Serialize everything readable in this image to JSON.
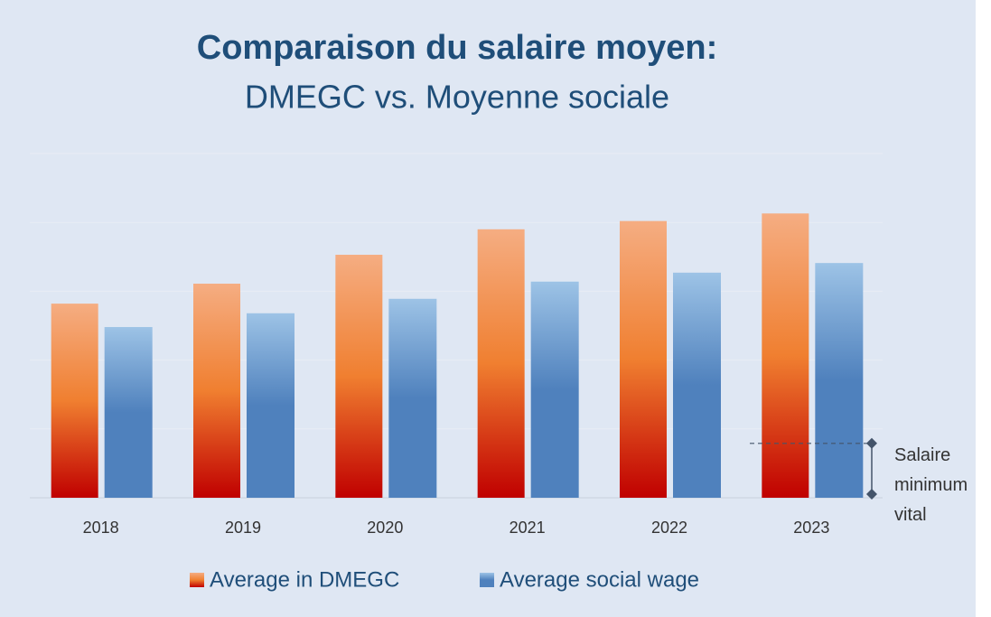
{
  "chart_data": {
    "type": "bar",
    "title": "Comparaison du salaire moyen:",
    "subtitle": "DMEGC vs. Moyenne sociale",
    "categories": [
      "2018",
      "2019",
      "2020",
      "2021",
      "2022",
      "2023"
    ],
    "series": [
      {
        "name": "Average in DMEGC",
        "color": "#f07f30",
        "gradient": [
          "#f5ad82",
          "#f07f30",
          "#c00000"
        ],
        "values": [
          2.82,
          3.11,
          3.53,
          3.9,
          4.02,
          4.13
        ]
      },
      {
        "name": "Average social wage",
        "color": "#4f81bd",
        "gradient": [
          "#9dc3e6",
          "#4f81bd",
          "#4f81bd"
        ],
        "values": [
          2.48,
          2.68,
          2.89,
          3.14,
          3.27,
          3.41
        ]
      }
    ],
    "ylim": [
      0,
      5
    ],
    "yticks": [
      0,
      1,
      2,
      3,
      4,
      5
    ],
    "grid": true,
    "annotation": {
      "text": "Salaire minimum vital",
      "value": 0.79
    },
    "legend": "bottom"
  }
}
